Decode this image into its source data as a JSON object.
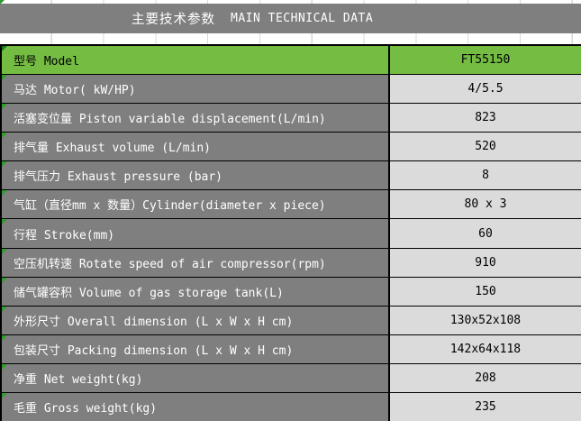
{
  "header": {
    "title_zh": "主要技术参数",
    "title_en": "MAIN TECHNICAL DATA"
  },
  "colors": {
    "header_bg": "#7f7f7f",
    "header_fg": "#ffffff",
    "label_bg": "#7f7f7f",
    "value_bg": "#dbdbdb",
    "accent_green": "#75bc43",
    "triangle_bright": "#2e9e2e",
    "triangle_dark": "#1c7a1c",
    "gridline": "#d9d9d9",
    "border": "#000000"
  },
  "table": {
    "rows": [
      {
        "label": "型号 Model",
        "value": "FT55150",
        "highlight": true
      },
      {
        "label": "马达 Motor( kW/HP)",
        "value": "4/5.5",
        "highlight": false
      },
      {
        "label": "活塞变位量 Piston variable displacement(L/min)",
        "value": "823",
        "highlight": false
      },
      {
        "label": "排气量 Exhaust volume (L/min)",
        "value": "520",
        "highlight": false
      },
      {
        "label": "排气压力 Exhaust pressure (bar)",
        "value": "8",
        "highlight": false
      },
      {
        "label": "气缸（直径mm x 数量）Cylinder(diameter x piece)",
        "value": "80 x 3",
        "highlight": false
      },
      {
        "label": "行程 Stroke(mm)",
        "value": "60",
        "highlight": false
      },
      {
        "label": "空压机转速 Rotate speed of air compressor(rpm)",
        "value": "910",
        "highlight": false
      },
      {
        "label": "储气罐容积 Volume of gas storage tank(L)",
        "value": "150",
        "highlight": false
      },
      {
        "label": "外形尺寸 Overall dimension (L x W x H cm)",
        "value": "130x52x108",
        "highlight": false
      },
      {
        "label": "包装尺寸 Packing dimension (L x W x H cm)",
        "value": "142x64x118",
        "highlight": false
      },
      {
        "label": "净重 Net weight(kg)",
        "value": "208",
        "highlight": false
      },
      {
        "label": "毛重 Gross weight(kg)",
        "value": "235",
        "highlight": false
      }
    ]
  }
}
